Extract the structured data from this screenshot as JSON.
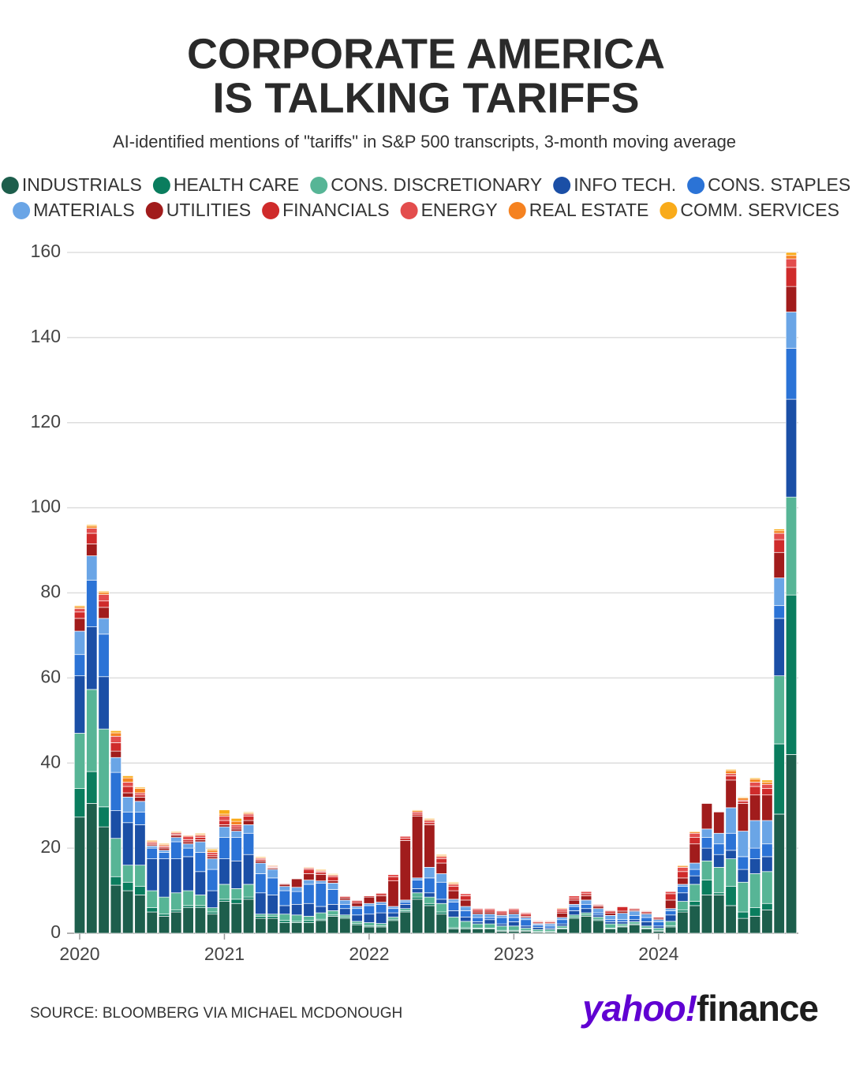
{
  "chart_data": {
    "type": "stacked_bar",
    "title": [
      "CORPORATE AMERICA",
      "IS TALKING TARIFFS"
    ],
    "subtitle": "AI-identified mentions of \"tariffs\" in S&P 500 transcripts, 3-month moving average",
    "source": "SOURCE: BLOOMBERG VIA MICHAEL MCDONOUGH",
    "logo": [
      "yahoo!",
      "finance"
    ],
    "categories": [
      "2020",
      null,
      null,
      null,
      null,
      null,
      null,
      null,
      null,
      null,
      null,
      null,
      "2021",
      null,
      null,
      null,
      null,
      null,
      null,
      null,
      null,
      null,
      null,
      null,
      "2022",
      null,
      null,
      null,
      null,
      null,
      null,
      null,
      null,
      null,
      null,
      null,
      "2023",
      null,
      null,
      null,
      null,
      null,
      null,
      null,
      null,
      null,
      null,
      null,
      "2024",
      null,
      null,
      null,
      null,
      null,
      null,
      null,
      null,
      null,
      null,
      null
    ],
    "ylim": [
      0,
      160
    ],
    "yticks": [
      0,
      20,
      40,
      60,
      80,
      100,
      120,
      140,
      160
    ],
    "grid": true,
    "legend": "top",
    "series": [
      {
        "name": "INDUSTRIALS",
        "color": "#1d5e4c",
        "values": [
          27.3,
          30.5,
          25,
          11.3,
          10,
          9,
          5,
          4,
          5,
          6,
          6,
          4.5,
          7.5,
          7,
          8,
          3.5,
          3.5,
          2.5,
          2.5,
          2.5,
          3,
          4,
          3.5,
          2,
          1.5,
          1.5,
          3,
          5,
          8,
          6.5,
          4.5,
          1,
          1,
          1,
          1,
          0.5,
          0.5,
          0.5,
          0.3,
          0.3,
          1,
          3.5,
          4,
          3,
          1,
          1.5,
          2,
          1,
          0.5,
          1.5,
          5,
          6.5,
          9,
          9,
          6.5,
          3.5,
          4,
          5.5,
          28,
          42
        ]
      },
      {
        "name": "HEALTH CARE",
        "color": "#0a7d5e",
        "values": [
          6.7,
          7.5,
          4.7,
          2,
          2,
          2,
          1,
          0.5,
          0.5,
          0.5,
          0.5,
          0.5,
          0.5,
          1,
          0.5,
          0.5,
          0.5,
          0.5,
          0.3,
          0.5,
          0.3,
          0.3,
          0.3,
          0.3,
          0.3,
          0.3,
          0.3,
          0.3,
          0.5,
          0.5,
          0.5,
          0.3,
          0.3,
          0.2,
          0.2,
          0.2,
          0.2,
          0.2,
          0.1,
          0.1,
          0.2,
          0.3,
          0.3,
          0.3,
          0.2,
          0.2,
          0.2,
          0.2,
          0.2,
          0.3,
          0.5,
          1,
          3.5,
          0.5,
          4.5,
          1.5,
          2,
          1.5,
          16.5,
          37.5
        ]
      },
      {
        "name": "CONS. DISCRETIONARY",
        "color": "#57b596",
        "values": [
          13,
          19.3,
          18.3,
          9,
          4,
          5,
          4,
          4,
          4,
          3.5,
          2.5,
          1,
          3.5,
          2.5,
          3,
          0.5,
          0.5,
          1.5,
          1.5,
          1,
          1.5,
          1,
          0.5,
          0.5,
          0.7,
          0.5,
          0.5,
          0.5,
          1,
          1.5,
          2,
          2.5,
          1.5,
          1,
          1,
          1,
          1,
          0.5,
          0.5,
          0.5,
          0.5,
          0.5,
          0.5,
          0.5,
          1,
          0.5,
          0.5,
          0.5,
          0.5,
          1,
          2,
          4,
          4.5,
          6,
          6.5,
          7,
          8,
          7.5,
          16,
          23
        ]
      },
      {
        "name": "INFO TECH.",
        "color": "#1b4fa6",
        "values": [
          13.5,
          14.7,
          12.3,
          6.5,
          10,
          9.5,
          7.5,
          9,
          8,
          8,
          5.5,
          4,
          6,
          6.5,
          7,
          5,
          4.5,
          2,
          2.5,
          3,
          1.5,
          1.5,
          1.5,
          1.5,
          2,
          2.5,
          1,
          1,
          1,
          1,
          1,
          1.5,
          1,
          0.5,
          1,
          0.5,
          1,
          0.5,
          0.5,
          0.3,
          0.5,
          1,
          1,
          0.5,
          0.5,
          0.5,
          0.5,
          1,
          0.5,
          1.5,
          2,
          2,
          3,
          3,
          2,
          3,
          3.5,
          3.5,
          13.5,
          23
        ]
      },
      {
        "name": "CONS. STAPLES",
        "color": "#2b73d6",
        "values": [
          5,
          11,
          10,
          9,
          2.5,
          3,
          2.5,
          1.5,
          4,
          2,
          4.5,
          5,
          5,
          5.5,
          5,
          4.5,
          4,
          3.5,
          3,
          4.5,
          5.5,
          3.5,
          1,
          1.5,
          2,
          2,
          1,
          0.5,
          2,
          3.5,
          4,
          2,
          1.5,
          1,
          0.5,
          1.5,
          1,
          1.5,
          0.5,
          0.5,
          1,
          1,
          1,
          0.5,
          0.5,
          0.5,
          1,
          1,
          1,
          1,
          1.5,
          1.5,
          2.5,
          2.5,
          4,
          3,
          2.5,
          3,
          3,
          12
        ]
      },
      {
        "name": "MATERIALS",
        "color": "#6aa5e6",
        "values": [
          5.5,
          5.7,
          3.7,
          3.5,
          3.5,
          2.5,
          0.5,
          0.5,
          1,
          1,
          2.5,
          2.5,
          2.5,
          1.5,
          2,
          2.5,
          2,
          1,
          1,
          1,
          0.5,
          1.5,
          1,
          0.5,
          0.5,
          0.5,
          0.5,
          0.5,
          0.5,
          2.5,
          2,
          0.7,
          1,
          0.8,
          0.8,
          0.5,
          0.8,
          0.5,
          0.3,
          0.5,
          0.5,
          0.5,
          1,
          1,
          1,
          1.5,
          1,
          0.8,
          0.5,
          0.5,
          0.5,
          1.5,
          2,
          2.5,
          6,
          6,
          6.5,
          5.5,
          6.5,
          8.5
        ]
      },
      {
        "name": "UTILITIES",
        "color": "#a11c1c",
        "values": [
          3,
          2.8,
          2.6,
          1.5,
          1,
          1,
          0.3,
          0.5,
          0.5,
          0.5,
          0.5,
          0.5,
          0.5,
          0.5,
          1,
          0.5,
          0.3,
          0.5,
          2,
          1.5,
          1.5,
          0.5,
          0.5,
          0.8,
          1.5,
          1.5,
          6,
          14,
          14.5,
          10,
          2.5,
          2,
          1.5,
          0.5,
          0.5,
          0.3,
          0.5,
          0.3,
          0.2,
          0.2,
          1,
          1,
          1,
          0.5,
          0.5,
          0.5,
          0.3,
          0.3,
          0.3,
          2,
          1.5,
          4.5,
          6,
          5,
          6.5,
          6.5,
          6,
          6,
          6,
          6
        ]
      },
      {
        "name": "FINANCIALS",
        "color": "#cf2b2b",
        "values": [
          1.5,
          2.5,
          1.5,
          2,
          1.5,
          0.5,
          0.3,
          0.3,
          0.3,
          0.5,
          0.5,
          0.5,
          1,
          0.5,
          1,
          0.3,
          0.2,
          0.2,
          0.1,
          1,
          0.5,
          1,
          0.3,
          0.5,
          0.3,
          0.5,
          1,
          0.5,
          0.5,
          0.5,
          1,
          1,
          1,
          0.5,
          0.5,
          0.5,
          0.5,
          0.5,
          0.3,
          0.3,
          0.5,
          0.5,
          0.5,
          0.3,
          0.5,
          1,
          0.3,
          0.3,
          0.3,
          1.5,
          1.5,
          1.5,
          0,
          0,
          1,
          0.5,
          2,
          1.5,
          3,
          4.5
        ]
      },
      {
        "name": "ENERGY",
        "color": "#e34d4d",
        "values": [
          0.8,
          1.2,
          1.5,
          1.5,
          1,
          0.5,
          0.3,
          0.3,
          0.3,
          0.8,
          0.5,
          0.5,
          1,
          0.5,
          0.5,
          0.3,
          0.2,
          0.1,
          0.1,
          0.3,
          0.3,
          0.3,
          0.2,
          0.2,
          0.1,
          0.2,
          0.5,
          0.5,
          0.5,
          0.5,
          0.5,
          0.5,
          0.5,
          0.3,
          0.3,
          0.3,
          0.3,
          0.3,
          0.2,
          0.2,
          0.5,
          0.5,
          0.5,
          0.2,
          0.2,
          0.2,
          0.1,
          0.2,
          0.1,
          0.5,
          1,
          1,
          0,
          0,
          0.5,
          0.3,
          1,
          1,
          1.5,
          2
        ]
      },
      {
        "name": "REAL ESTATE",
        "color": "#f58220",
        "values": [
          0.4,
          0.5,
          0.5,
          0.8,
          1,
          1,
          0.3,
          0.3,
          0.2,
          0.2,
          0.3,
          0.5,
          0.5,
          0.8,
          0.3,
          0.2,
          0.2,
          0.1,
          0,
          0.2,
          0.2,
          0.2,
          0.1,
          0.1,
          0.1,
          0,
          0.1,
          0.1,
          0.3,
          0.3,
          0.3,
          0.3,
          0.1,
          0.1,
          0.1,
          0.1,
          0.1,
          0.1,
          0.05,
          0.05,
          0.2,
          0.1,
          0.1,
          0.1,
          0.05,
          0.05,
          0.05,
          0.1,
          0.05,
          0.1,
          0.3,
          0.3,
          0,
          0,
          0.7,
          0.5,
          0.7,
          0.5,
          0.6,
          0.8
        ]
      },
      {
        "name": "COMM. SERVICES",
        "color": "#f9ab1a",
        "values": [
          0.3,
          0.3,
          0.3,
          0.5,
          0.5,
          0.3,
          0.2,
          0.2,
          0.2,
          0,
          0.2,
          0.3,
          1,
          0.7,
          0.2,
          0.2,
          0.1,
          0.1,
          0,
          0,
          0.2,
          0.2,
          0.1,
          0.1,
          0,
          0,
          0.1,
          0.1,
          0.2,
          0.2,
          0.2,
          0.2,
          0.1,
          0.1,
          0.1,
          0.1,
          0.1,
          0.1,
          0.05,
          0.05,
          0.1,
          0.1,
          0.1,
          0.1,
          0.05,
          0.05,
          0.05,
          0.1,
          0.05,
          0.1,
          0.2,
          0.2,
          0,
          0,
          0.3,
          0.2,
          0.3,
          0.5,
          0.4,
          0.7
        ]
      }
    ]
  }
}
